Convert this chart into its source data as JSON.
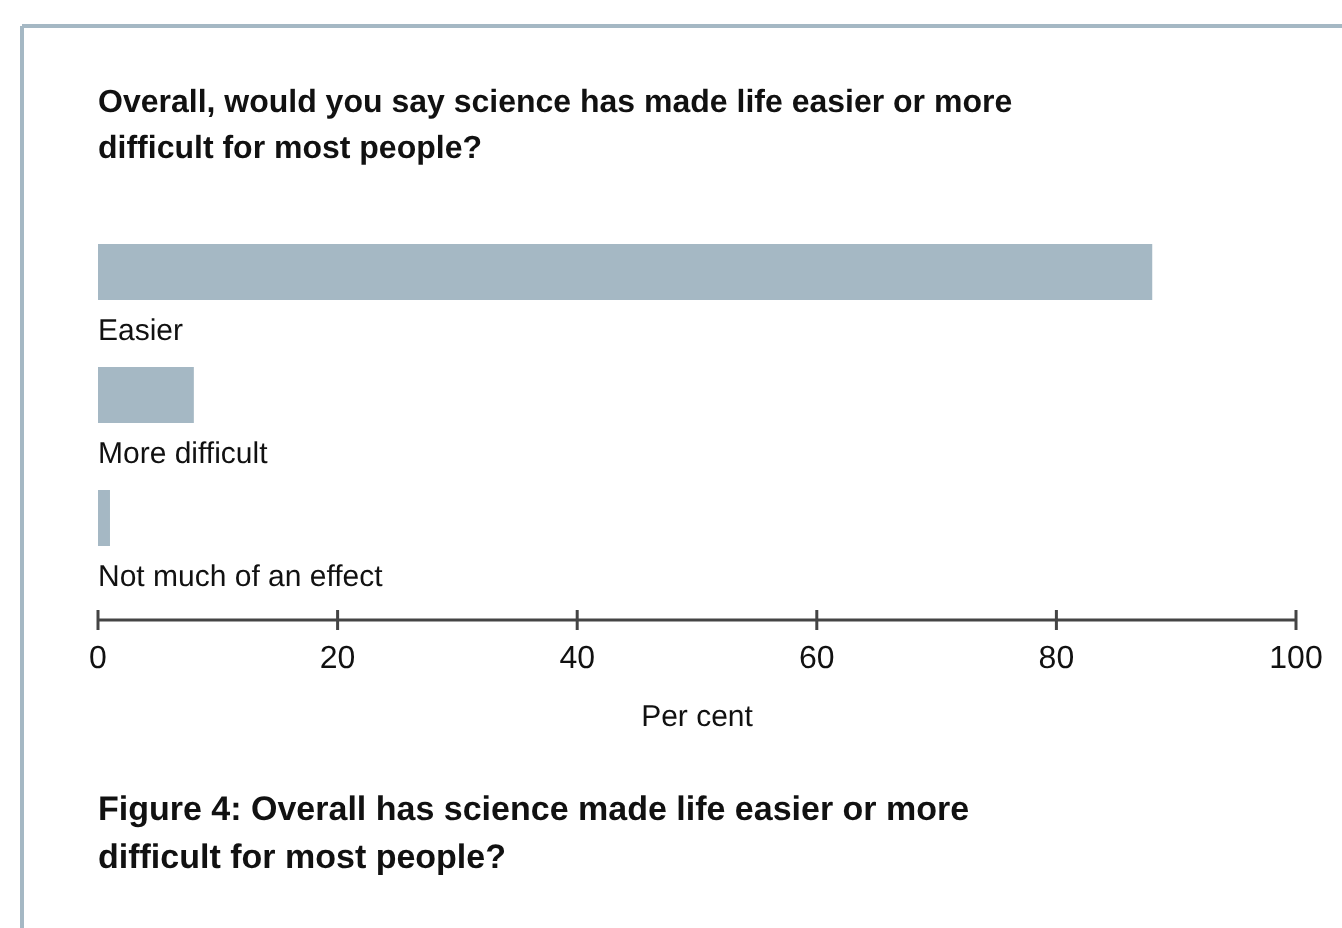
{
  "chart_data": {
    "type": "bar",
    "orientation": "horizontal",
    "title": "Overall, would you say science has made life easier or more difficult for most people?",
    "categories": [
      "Easier",
      "More difficult",
      "Not much of an effect"
    ],
    "values": [
      88,
      8,
      1
    ],
    "color": "#a5b8c4",
    "xlim": [
      0,
      100
    ],
    "xticks": [
      0,
      20,
      40,
      60,
      80,
      100
    ],
    "xlabel": "Per cent",
    "grid": false,
    "annotations": [
      "Figure 4: Overall has science made life easier or more difficult for most people?"
    ]
  }
}
